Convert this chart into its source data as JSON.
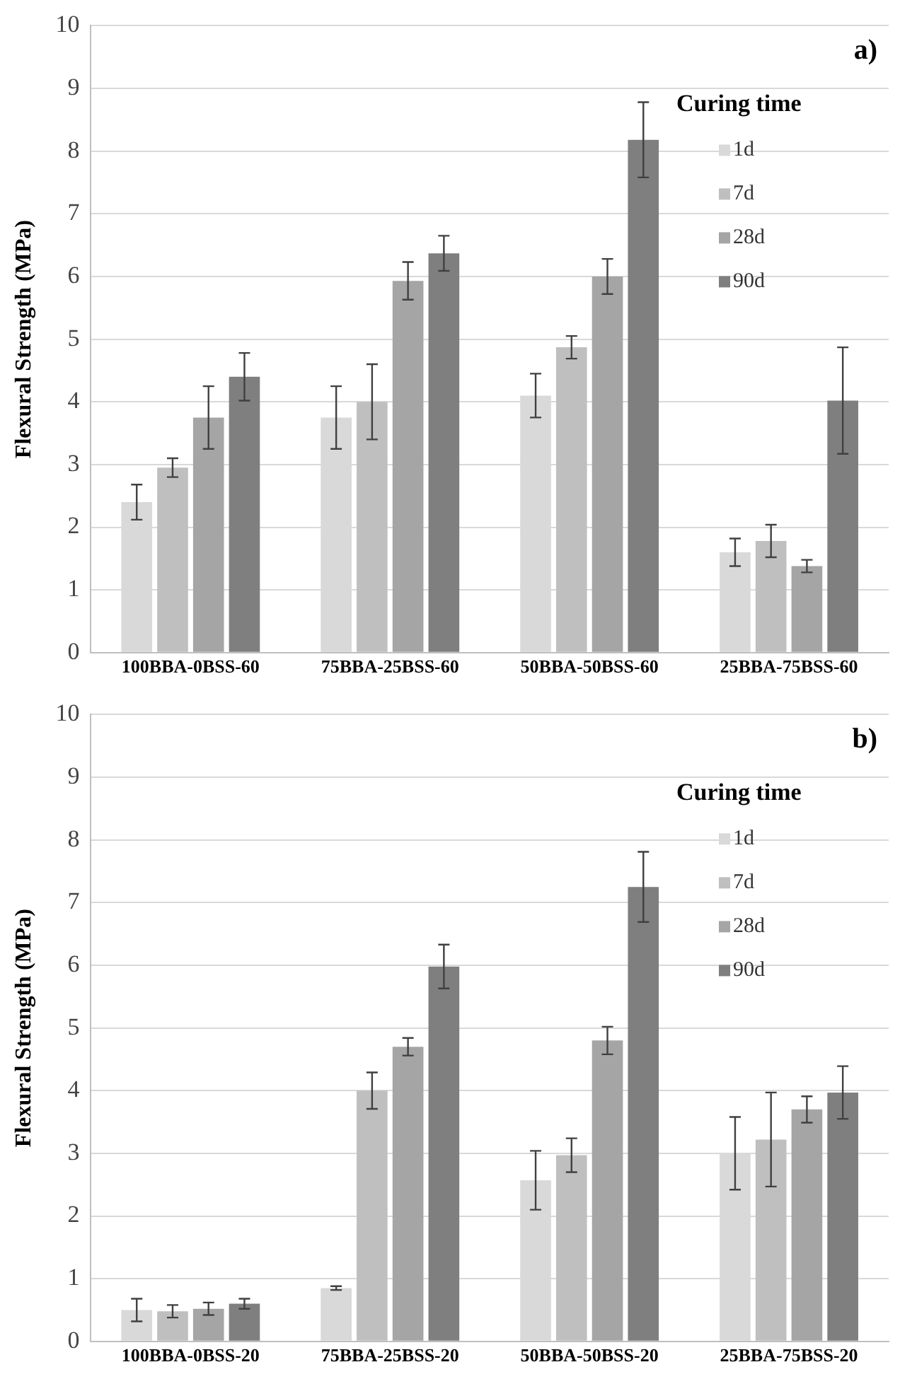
{
  "chart_data": [
    {
      "type": "bar",
      "ylabel": "Flexural Strength (MPa)",
      "legend_title": "Curing time",
      "legend": "top right",
      "grid": "y",
      "annotations": [
        "a)"
      ],
      "categories": [
        "100BBA-0BSS-60",
        "75BBA-25BSS-60",
        "50BBA-50BSS-60",
        "25BBA-75BSS-60"
      ],
      "ylim": [
        0,
        10
      ],
      "yticks": [
        0,
        1,
        2,
        3,
        4,
        5,
        6,
        7,
        8,
        9,
        10
      ],
      "series": [
        {
          "name": "1d",
          "color": "#d9d9d9",
          "values": [
            2.4,
            3.75,
            4.1,
            1.6
          ],
          "errors": [
            0.28,
            0.5,
            0.35,
            0.22
          ]
        },
        {
          "name": "7d",
          "color": "#bfbfbf",
          "values": [
            2.95,
            4.0,
            4.87,
            1.78
          ],
          "errors": [
            0.15,
            0.6,
            0.18,
            0.26
          ]
        },
        {
          "name": "28d",
          "color": "#a5a5a5",
          "values": [
            3.75,
            5.93,
            6.0,
            1.38
          ],
          "errors": [
            0.5,
            0.3,
            0.28,
            0.1
          ]
        },
        {
          "name": "90d",
          "color": "#7f7f7f",
          "values": [
            4.4,
            6.37,
            8.18,
            4.02
          ],
          "errors": [
            0.38,
            0.28,
            0.6,
            0.85
          ]
        }
      ]
    },
    {
      "type": "bar",
      "ylabel": "Flexural Strength (MPa)",
      "legend_title": "Curing time",
      "legend": "top right",
      "grid": "y",
      "annotations": [
        "b)"
      ],
      "categories": [
        "100BBA-0BSS-20",
        "75BBA-25BSS-20",
        "50BBA-50BSS-20",
        "25BBA-75BSS-20"
      ],
      "ylim": [
        0,
        10
      ],
      "yticks": [
        0,
        1,
        2,
        3,
        4,
        5,
        6,
        7,
        8,
        9,
        10
      ],
      "series": [
        {
          "name": "1d",
          "color": "#d9d9d9",
          "values": [
            0.5,
            0.85,
            2.57,
            3.0
          ],
          "errors": [
            0.18,
            0.03,
            0.47,
            0.58
          ]
        },
        {
          "name": "7d",
          "color": "#bfbfbf",
          "values": [
            0.48,
            4.0,
            2.97,
            3.22
          ],
          "errors": [
            0.1,
            0.29,
            0.27,
            0.75
          ]
        },
        {
          "name": "28d",
          "color": "#a5a5a5",
          "values": [
            0.52,
            4.7,
            4.8,
            3.7
          ],
          "errors": [
            0.1,
            0.14,
            0.22,
            0.21
          ]
        },
        {
          "name": "90d",
          "color": "#7f7f7f",
          "values": [
            0.6,
            5.98,
            7.25,
            3.97
          ],
          "errors": [
            0.08,
            0.35,
            0.56,
            0.42
          ]
        }
      ]
    }
  ]
}
